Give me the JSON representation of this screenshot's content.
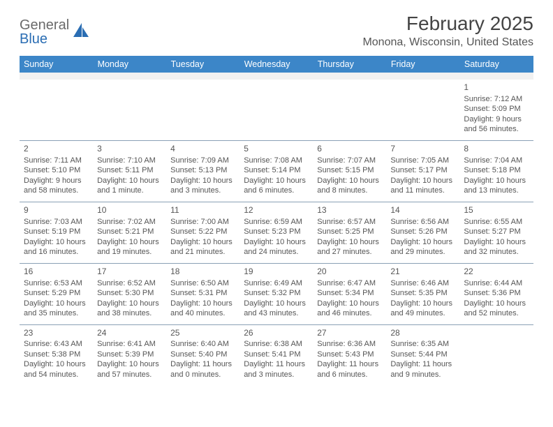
{
  "logo": {
    "line1": "General",
    "line2": "Blue"
  },
  "title": "February 2025",
  "subtitle": "Monona, Wisconsin, United States",
  "colors": {
    "header_bg": "#3c86c8",
    "header_text": "#ffffff",
    "pad_bg": "#f1f1f1",
    "cell_border": "#8aa0b5",
    "text": "#555555",
    "logo_accent": "#2a6db3"
  },
  "dow": [
    "Sunday",
    "Monday",
    "Tuesday",
    "Wednesday",
    "Thursday",
    "Friday",
    "Saturday"
  ],
  "weeks": [
    [
      null,
      null,
      null,
      null,
      null,
      null,
      {
        "n": "1",
        "sr": "Sunrise: 7:12 AM",
        "ss": "Sunset: 5:09 PM",
        "d1": "Daylight: 9 hours",
        "d2": "and 56 minutes."
      }
    ],
    [
      {
        "n": "2",
        "sr": "Sunrise: 7:11 AM",
        "ss": "Sunset: 5:10 PM",
        "d1": "Daylight: 9 hours",
        "d2": "and 58 minutes."
      },
      {
        "n": "3",
        "sr": "Sunrise: 7:10 AM",
        "ss": "Sunset: 5:11 PM",
        "d1": "Daylight: 10 hours",
        "d2": "and 1 minute."
      },
      {
        "n": "4",
        "sr": "Sunrise: 7:09 AM",
        "ss": "Sunset: 5:13 PM",
        "d1": "Daylight: 10 hours",
        "d2": "and 3 minutes."
      },
      {
        "n": "5",
        "sr": "Sunrise: 7:08 AM",
        "ss": "Sunset: 5:14 PM",
        "d1": "Daylight: 10 hours",
        "d2": "and 6 minutes."
      },
      {
        "n": "6",
        "sr": "Sunrise: 7:07 AM",
        "ss": "Sunset: 5:15 PM",
        "d1": "Daylight: 10 hours",
        "d2": "and 8 minutes."
      },
      {
        "n": "7",
        "sr": "Sunrise: 7:05 AM",
        "ss": "Sunset: 5:17 PM",
        "d1": "Daylight: 10 hours",
        "d2": "and 11 minutes."
      },
      {
        "n": "8",
        "sr": "Sunrise: 7:04 AM",
        "ss": "Sunset: 5:18 PM",
        "d1": "Daylight: 10 hours",
        "d2": "and 13 minutes."
      }
    ],
    [
      {
        "n": "9",
        "sr": "Sunrise: 7:03 AM",
        "ss": "Sunset: 5:19 PM",
        "d1": "Daylight: 10 hours",
        "d2": "and 16 minutes."
      },
      {
        "n": "10",
        "sr": "Sunrise: 7:02 AM",
        "ss": "Sunset: 5:21 PM",
        "d1": "Daylight: 10 hours",
        "d2": "and 19 minutes."
      },
      {
        "n": "11",
        "sr": "Sunrise: 7:00 AM",
        "ss": "Sunset: 5:22 PM",
        "d1": "Daylight: 10 hours",
        "d2": "and 21 minutes."
      },
      {
        "n": "12",
        "sr": "Sunrise: 6:59 AM",
        "ss": "Sunset: 5:23 PM",
        "d1": "Daylight: 10 hours",
        "d2": "and 24 minutes."
      },
      {
        "n": "13",
        "sr": "Sunrise: 6:57 AM",
        "ss": "Sunset: 5:25 PM",
        "d1": "Daylight: 10 hours",
        "d2": "and 27 minutes."
      },
      {
        "n": "14",
        "sr": "Sunrise: 6:56 AM",
        "ss": "Sunset: 5:26 PM",
        "d1": "Daylight: 10 hours",
        "d2": "and 29 minutes."
      },
      {
        "n": "15",
        "sr": "Sunrise: 6:55 AM",
        "ss": "Sunset: 5:27 PM",
        "d1": "Daylight: 10 hours",
        "d2": "and 32 minutes."
      }
    ],
    [
      {
        "n": "16",
        "sr": "Sunrise: 6:53 AM",
        "ss": "Sunset: 5:29 PM",
        "d1": "Daylight: 10 hours",
        "d2": "and 35 minutes."
      },
      {
        "n": "17",
        "sr": "Sunrise: 6:52 AM",
        "ss": "Sunset: 5:30 PM",
        "d1": "Daylight: 10 hours",
        "d2": "and 38 minutes."
      },
      {
        "n": "18",
        "sr": "Sunrise: 6:50 AM",
        "ss": "Sunset: 5:31 PM",
        "d1": "Daylight: 10 hours",
        "d2": "and 40 minutes."
      },
      {
        "n": "19",
        "sr": "Sunrise: 6:49 AM",
        "ss": "Sunset: 5:32 PM",
        "d1": "Daylight: 10 hours",
        "d2": "and 43 minutes."
      },
      {
        "n": "20",
        "sr": "Sunrise: 6:47 AM",
        "ss": "Sunset: 5:34 PM",
        "d1": "Daylight: 10 hours",
        "d2": "and 46 minutes."
      },
      {
        "n": "21",
        "sr": "Sunrise: 6:46 AM",
        "ss": "Sunset: 5:35 PM",
        "d1": "Daylight: 10 hours",
        "d2": "and 49 minutes."
      },
      {
        "n": "22",
        "sr": "Sunrise: 6:44 AM",
        "ss": "Sunset: 5:36 PM",
        "d1": "Daylight: 10 hours",
        "d2": "and 52 minutes."
      }
    ],
    [
      {
        "n": "23",
        "sr": "Sunrise: 6:43 AM",
        "ss": "Sunset: 5:38 PM",
        "d1": "Daylight: 10 hours",
        "d2": "and 54 minutes."
      },
      {
        "n": "24",
        "sr": "Sunrise: 6:41 AM",
        "ss": "Sunset: 5:39 PM",
        "d1": "Daylight: 10 hours",
        "d2": "and 57 minutes."
      },
      {
        "n": "25",
        "sr": "Sunrise: 6:40 AM",
        "ss": "Sunset: 5:40 PM",
        "d1": "Daylight: 11 hours",
        "d2": "and 0 minutes."
      },
      {
        "n": "26",
        "sr": "Sunrise: 6:38 AM",
        "ss": "Sunset: 5:41 PM",
        "d1": "Daylight: 11 hours",
        "d2": "and 3 minutes."
      },
      {
        "n": "27",
        "sr": "Sunrise: 6:36 AM",
        "ss": "Sunset: 5:43 PM",
        "d1": "Daylight: 11 hours",
        "d2": "and 6 minutes."
      },
      {
        "n": "28",
        "sr": "Sunrise: 6:35 AM",
        "ss": "Sunset: 5:44 PM",
        "d1": "Daylight: 11 hours",
        "d2": "and 9 minutes."
      },
      null
    ]
  ]
}
